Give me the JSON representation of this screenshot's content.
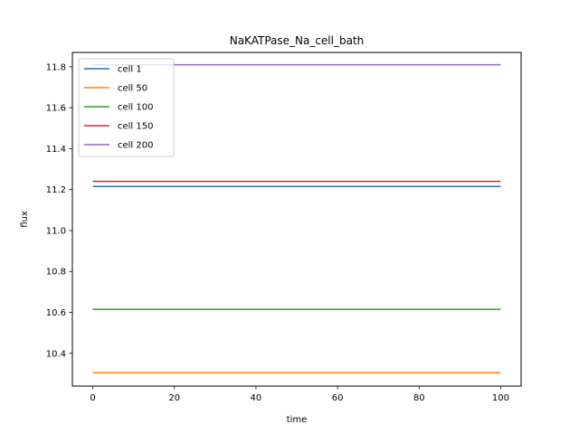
{
  "chart_data": {
    "type": "line",
    "title": "NaKATPase_Na_cell_bath",
    "xlabel": "time",
    "ylabel": "flux",
    "x": [
      0,
      100
    ],
    "xlim": [
      -5,
      105
    ],
    "ylim": [
      10.24,
      11.87
    ],
    "xticks": [
      0,
      20,
      40,
      60,
      80,
      100
    ],
    "yticks": [
      10.4,
      10.6,
      10.8,
      11.0,
      11.2,
      11.4,
      11.6,
      11.8
    ],
    "xtick_labels": [
      "0",
      "20",
      "40",
      "60",
      "80",
      "100"
    ],
    "ytick_labels": [
      "10.4",
      "10.6",
      "10.8",
      "11.0",
      "11.2",
      "11.4",
      "11.6",
      "11.8"
    ],
    "grid": false,
    "legend_position": "top-left",
    "series": [
      {
        "name": "cell 1",
        "color": "#1f77b4",
        "values": [
          11.215,
          11.215
        ]
      },
      {
        "name": "cell 50",
        "color": "#ff7f0e",
        "values": [
          10.305,
          10.305
        ]
      },
      {
        "name": "cell 100",
        "color": "#2ca02c",
        "values": [
          10.615,
          10.615
        ]
      },
      {
        "name": "cell 150",
        "color": "#d62728",
        "values": [
          11.24,
          11.24
        ]
      },
      {
        "name": "cell 200",
        "color": "#9467bd",
        "values": [
          11.81,
          11.81
        ]
      }
    ]
  }
}
